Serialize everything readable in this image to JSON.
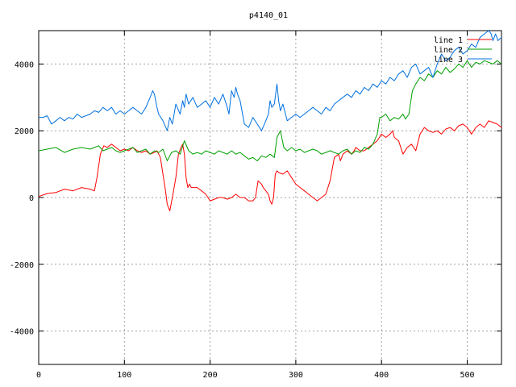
{
  "chart_data": {
    "type": "line",
    "title": "p4140_01",
    "xlabel": "",
    "ylabel": "",
    "xlim": [
      0,
      540
    ],
    "ylim": [
      -5000,
      5000
    ],
    "x_ticks": [
      0,
      100,
      200,
      300,
      400,
      500
    ],
    "y_ticks": [
      -4000,
      -2000,
      0,
      2000,
      4000
    ],
    "grid": true,
    "legend_position": "top-right",
    "series": [
      {
        "name": "line 1",
        "color": "#ff0000",
        "x": [
          0,
          10,
          20,
          30,
          40,
          50,
          60,
          65,
          68,
          72,
          76,
          80,
          85,
          90,
          95,
          100,
          105,
          110,
          115,
          120,
          125,
          130,
          135,
          138,
          140,
          142,
          145,
          148,
          150,
          153,
          156,
          160,
          163,
          166,
          168,
          170,
          172,
          174,
          176,
          178,
          180,
          185,
          190,
          195,
          200,
          205,
          210,
          215,
          220,
          225,
          230,
          235,
          240,
          245,
          248,
          250,
          253,
          256,
          260,
          262,
          265,
          268,
          270,
          272,
          274,
          276,
          278,
          280,
          285,
          290,
          295,
          300,
          305,
          310,
          315,
          320,
          325,
          330,
          335,
          340,
          345,
          350,
          352,
          355,
          360,
          365,
          368,
          370,
          375,
          380,
          385,
          390,
          395,
          400,
          405,
          410,
          413,
          415,
          420,
          425,
          430,
          435,
          440,
          445,
          450,
          455,
          460,
          465,
          470,
          475,
          480,
          485,
          490,
          495,
          500,
          505,
          510,
          515,
          520,
          525,
          530,
          535,
          540
        ],
        "y": [
          30,
          120,
          150,
          250,
          200,
          300,
          250,
          200,
          600,
          1300,
          1550,
          1500,
          1600,
          1500,
          1400,
          1450,
          1400,
          1500,
          1400,
          1350,
          1400,
          1300,
          1350,
          1400,
          1300,
          1200,
          700,
          200,
          -200,
          -400,
          0,
          600,
          1300,
          1500,
          1600,
          1300,
          600,
          300,
          400,
          300,
          300,
          300,
          200,
          100,
          -100,
          -50,
          0,
          0,
          -50,
          0,
          100,
          0,
          0,
          -100,
          -100,
          -100,
          0,
          500,
          400,
          300,
          200,
          100,
          -100,
          -200,
          0,
          700,
          800,
          750,
          700,
          800,
          600,
          400,
          300,
          200,
          100,
          0,
          -100,
          0,
          100,
          500,
          1200,
          1300,
          1100,
          1300,
          1400,
          1300,
          1400,
          1500,
          1400,
          1400,
          1500,
          1600,
          1700,
          1900,
          1800,
          1900,
          2000,
          1800,
          1700,
          1300,
          1500,
          1600,
          1400,
          1900,
          2100,
          2000,
          1950,
          2000,
          1900,
          2050,
          2100,
          2000,
          2150,
          2200,
          2100,
          1900,
          2100,
          2200,
          2100,
          2300,
          2250,
          2200,
          2100
        ]
      },
      {
        "name": "line 2",
        "color": "#00a000",
        "x": [
          0,
          10,
          20,
          30,
          40,
          50,
          60,
          65,
          70,
          75,
          80,
          85,
          90,
          95,
          100,
          105,
          110,
          115,
          120,
          125,
          130,
          135,
          140,
          145,
          150,
          155,
          160,
          165,
          170,
          175,
          180,
          185,
          190,
          195,
          200,
          205,
          210,
          215,
          220,
          225,
          230,
          235,
          240,
          245,
          250,
          255,
          260,
          265,
          270,
          275,
          278,
          282,
          286,
          290,
          295,
          300,
          305,
          310,
          315,
          320,
          325,
          330,
          335,
          340,
          345,
          350,
          355,
          360,
          365,
          370,
          375,
          380,
          385,
          390,
          395,
          398,
          400,
          405,
          410,
          415,
          420,
          425,
          428,
          432,
          436,
          440,
          445,
          450,
          455,
          460,
          465,
          470,
          475,
          480,
          485,
          490,
          495,
          500,
          505,
          510,
          515,
          520,
          525,
          530,
          535,
          540
        ],
        "y": [
          1400,
          1450,
          1500,
          1350,
          1450,
          1500,
          1450,
          1500,
          1550,
          1400,
          1450,
          1500,
          1400,
          1350,
          1400,
          1450,
          1500,
          1350,
          1400,
          1450,
          1300,
          1400,
          1350,
          1450,
          1100,
          1350,
          1400,
          1300,
          1700,
          1400,
          1300,
          1350,
          1300,
          1400,
          1350,
          1300,
          1400,
          1350,
          1300,
          1400,
          1300,
          1350,
          1250,
          1150,
          1200,
          1100,
          1250,
          1200,
          1300,
          1200,
          1800,
          2000,
          1500,
          1400,
          1500,
          1400,
          1450,
          1350,
          1400,
          1450,
          1400,
          1300,
          1350,
          1400,
          1350,
          1300,
          1400,
          1450,
          1300,
          1400,
          1350,
          1500,
          1450,
          1600,
          1900,
          2400,
          2400,
          2500,
          2300,
          2400,
          2350,
          2500,
          2350,
          2500,
          3200,
          3400,
          3600,
          3500,
          3700,
          3600,
          3800,
          3700,
          3900,
          3750,
          3850,
          4000,
          3900,
          4100,
          3900,
          4050,
          4000,
          4100,
          4050,
          4000,
          4100,
          4000
        ]
      },
      {
        "name": "line 3",
        "color": "#0070e0",
        "x": [
          0,
          5,
          10,
          15,
          20,
          25,
          30,
          35,
          40,
          45,
          50,
          55,
          60,
          65,
          70,
          75,
          80,
          85,
          90,
          95,
          100,
          105,
          110,
          115,
          120,
          125,
          130,
          133,
          135,
          138,
          140,
          145,
          150,
          153,
          156,
          160,
          165,
          168,
          170,
          172,
          175,
          180,
          185,
          190,
          195,
          200,
          205,
          210,
          215,
          220,
          222,
          225,
          228,
          230,
          232,
          235,
          240,
          245,
          250,
          255,
          260,
          265,
          268,
          270,
          272,
          275,
          278,
          280,
          282,
          285,
          288,
          290,
          295,
          300,
          305,
          310,
          315,
          320,
          325,
          330,
          335,
          340,
          345,
          350,
          355,
          360,
          365,
          370,
          375,
          380,
          385,
          390,
          395,
          400,
          405,
          410,
          415,
          420,
          425,
          430,
          435,
          440,
          445,
          450,
          455,
          460,
          465,
          470,
          475,
          480,
          485,
          490,
          495,
          500,
          505,
          510,
          515,
          520,
          525,
          528,
          530,
          533,
          536,
          540
        ],
        "y": [
          2400,
          2400,
          2450,
          2200,
          2300,
          2400,
          2300,
          2400,
          2350,
          2500,
          2400,
          2450,
          2500,
          2600,
          2550,
          2700,
          2600,
          2700,
          2500,
          2600,
          2500,
          2600,
          2700,
          2600,
          2500,
          2700,
          3000,
          3200,
          3100,
          2700,
          2500,
          2300,
          2000,
          2400,
          2200,
          2800,
          2500,
          2900,
          2700,
          3100,
          2800,
          3000,
          2700,
          2800,
          2900,
          2700,
          3000,
          2800,
          3100,
          2700,
          2500,
          3200,
          3000,
          3300,
          3100,
          2900,
          2200,
          2100,
          2400,
          2200,
          2000,
          2300,
          2500,
          2900,
          2700,
          2800,
          3400,
          2900,
          2600,
          2800,
          2500,
          2300,
          2400,
          2500,
          2400,
          2500,
          2600,
          2700,
          2600,
          2500,
          2700,
          2600,
          2800,
          2900,
          3000,
          3100,
          3000,
          3200,
          3100,
          3300,
          3200,
          3400,
          3300,
          3500,
          3400,
          3600,
          3500,
          3700,
          3800,
          3600,
          3900,
          4000,
          3700,
          3800,
          3900,
          3600,
          4000,
          4300,
          4100,
          4200,
          4400,
          4500,
          4300,
          4400,
          4600,
          4500,
          4800,
          4900,
          5000,
          4900,
          4700,
          4900,
          4700,
          4800
        ]
      }
    ]
  }
}
